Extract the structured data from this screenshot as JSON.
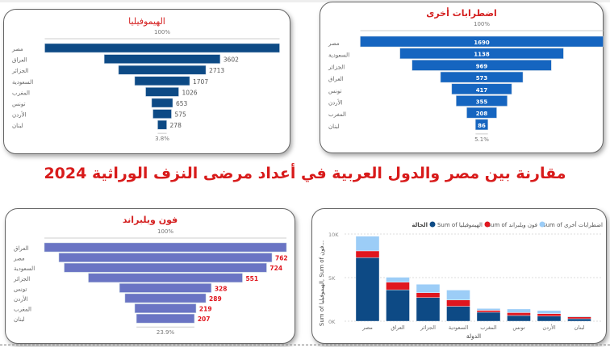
{
  "main_title": "مقارنة بين مصر والدول العربية في أعداد مرضى النزف الوراثية 2024",
  "colors": {
    "hemophilia": "#0d4a85",
    "vwd": "#e0161e",
    "other": "#9ccdf7",
    "vwd_funnel": "#6a74c4",
    "other_funnel": "#1565c0",
    "title_red": "#d42020"
  },
  "chart_data": [
    {
      "type": "funnel",
      "title": "الهيموفيليا",
      "top_label": "100%",
      "bottom_label": "3.8%",
      "categories": [
        "مصر",
        "العراق",
        "الجزائر",
        "السعودية",
        "المغرب",
        "تونس",
        "الأردن",
        "لبنان"
      ],
      "values": [
        7300,
        3602,
        2713,
        1707,
        1026,
        653,
        575,
        278
      ],
      "data_labels": [
        "",
        "3602",
        "2713",
        "1707",
        "1026",
        "653",
        "575",
        "278"
      ]
    },
    {
      "type": "funnel",
      "title": "اضطرابات أخرى",
      "top_label": "100%",
      "bottom_label": "5.1%",
      "categories": [
        "مصر",
        "السعودية",
        "الجزائر",
        "العراق",
        "تونس",
        "الأردن",
        "المغرب",
        "لبنان"
      ],
      "values": [
        1690,
        1138,
        969,
        573,
        417,
        355,
        208,
        86
      ],
      "data_labels": [
        "1690",
        "1138",
        "969",
        "573",
        "417",
        "355",
        "208",
        "86"
      ]
    },
    {
      "type": "funnel",
      "title": "فون ويلبراند",
      "top_label": "100%",
      "bottom_label": "23.9%",
      "categories": [
        "العراق",
        "مصر",
        "السعودية",
        "الجزائر",
        "تونس",
        "الأردن",
        "المغرب",
        "لبنان"
      ],
      "values": [
        866,
        762,
        724,
        551,
        328,
        289,
        219,
        207
      ],
      "data_labels": [
        "",
        "762",
        "724",
        "551",
        "328",
        "289",
        "219",
        "207"
      ]
    },
    {
      "type": "bar",
      "stacked": true,
      "legend_title": "الحالة",
      "categories": [
        "مصر",
        "العراق",
        "الجزائر",
        "السعودية",
        "المغرب",
        "تونس",
        "الأردن",
        "لبنان"
      ],
      "series": [
        {
          "name": "Sum of الهيموفيليا",
          "values": [
            7300,
            3602,
            2713,
            1707,
            1026,
            653,
            575,
            278
          ]
        },
        {
          "name": "Sum of فون ويلبراند",
          "values": [
            762,
            866,
            551,
            724,
            219,
            328,
            289,
            207
          ]
        },
        {
          "name": "Sum of اضطرابات أخرى",
          "values": [
            1690,
            573,
            969,
            1138,
            208,
            417,
            355,
            86
          ]
        }
      ],
      "xlabel": "الدولة",
      "ylabel": "Sum of الهيموفيليا, Sum of فون...",
      "yticks": [
        "0K",
        "5K",
        "10K"
      ],
      "ylim": [
        0,
        10000
      ],
      "legend": "top"
    }
  ]
}
